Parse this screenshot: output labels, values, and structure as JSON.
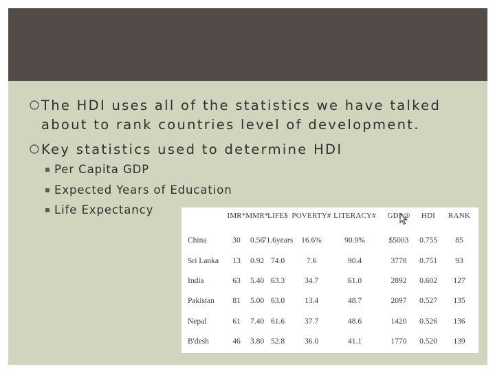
{
  "slide": {
    "bullets": [
      {
        "line1": "The HDI uses all of the statistics we have talked",
        "line2": "about to rank countries level of development."
      },
      {
        "line1": "Key statistics used to determine HDI"
      }
    ],
    "sub_bullets": [
      "Per Capita GDP",
      "Expected Years of Education",
      "Life Expectancy"
    ]
  },
  "table": {
    "headers": [
      "IMR*",
      "MMR*",
      "LIFE$",
      "POVERTY#",
      "LITERACY#",
      "GDP@",
      "HDI",
      "RANK"
    ],
    "rows": [
      {
        "country": "China",
        "cells": [
          "30",
          "0.56",
          "71.6years",
          "16.6%",
          "90.9%",
          "$5003",
          "0.755",
          "85"
        ]
      },
      {
        "country": "Sri Lanka",
        "cells": [
          "13",
          "0.92",
          "74.0",
          "7.6",
          "90.4",
          "3778",
          "0.751",
          "93"
        ]
      },
      {
        "country": "India",
        "cells": [
          "63",
          "5.40",
          "63.3",
          "34.7",
          "61.0",
          "2892",
          "0.602",
          "127"
        ]
      },
      {
        "country": "Pakistan",
        "cells": [
          "81",
          "5.00",
          "63.0",
          "13.4",
          "48.7",
          "2097",
          "0.527",
          "135"
        ]
      },
      {
        "country": "Nepal",
        "cells": [
          "61",
          "7.40",
          "61.6",
          "37.7",
          "48.6",
          "1420",
          "0.526",
          "136"
        ]
      },
      {
        "country": "B'desh",
        "cells": [
          "46",
          "3.80",
          "52.8",
          "36.0",
          "41.1",
          "1770",
          "0.520",
          "139"
        ]
      }
    ]
  },
  "icons": {
    "bullet": "circle-bullet-icon",
    "sub_bullet": "square-bullet-icon",
    "cursor": "mouse-cursor-icon"
  }
}
